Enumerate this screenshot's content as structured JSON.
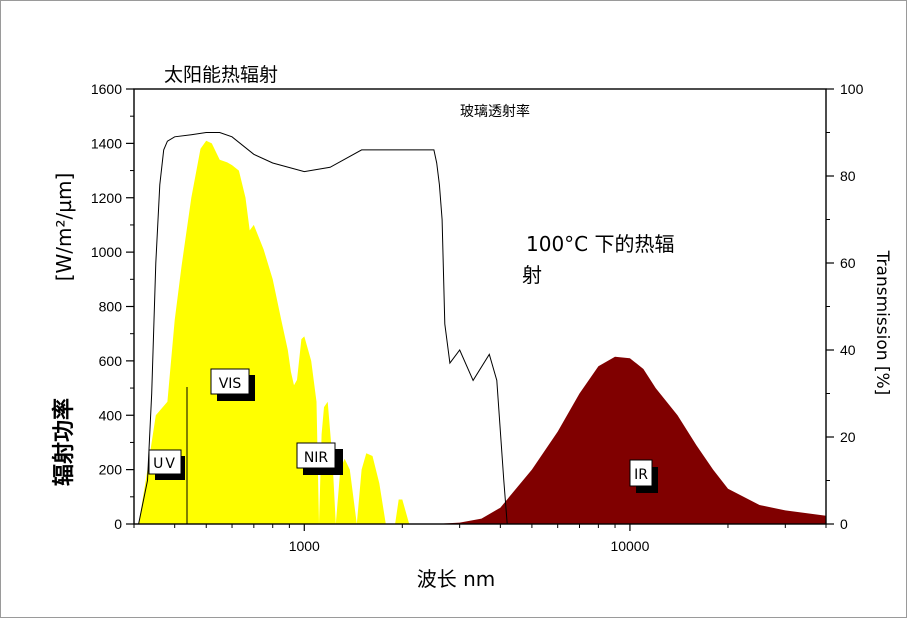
{
  "chart_data": {
    "type": "area",
    "title": "太阳能热辐射",
    "xlabel": "波长 nm",
    "x_scale": "log",
    "xlim": [
      300,
      40000
    ],
    "x_ticks": [
      "1000",
      "10000"
    ],
    "ylabel_left_unit": "[W/m²/µm]",
    "ylabel_left_cn": "辐射功率",
    "ylim_left": [
      0,
      1600
    ],
    "y_ticks_left": [
      "0",
      "200",
      "400",
      "600",
      "800",
      "1000",
      "1200",
      "1400",
      "1600"
    ],
    "ylabel_right": "Transmission [%]",
    "ylim_right": [
      0,
      100
    ],
    "y_ticks_right": [
      "0",
      "20",
      "40",
      "60",
      "80",
      "100"
    ],
    "annotations": {
      "glass": "玻璃透射率",
      "thermal": "100°C 下的热辐",
      "thermal2": "射",
      "uv": "UV",
      "vis": "VIS",
      "nir": "NIR",
      "ir": "IR"
    },
    "series": [
      {
        "axis": "left",
        "color": "#ffff00",
        "x": [
          310,
          330,
          350,
          380,
          400,
          420,
          450,
          480,
          500,
          520,
          550,
          580,
          600,
          630,
          660,
          680,
          700,
          750,
          800,
          850,
          890,
          910,
          930,
          950,
          980,
          1000,
          1050,
          1090,
          1110,
          1130,
          1150,
          1180,
          1220,
          1250,
          1290,
          1330,
          1380,
          1450,
          1500,
          1550,
          1620,
          1700,
          1780,
          1800,
          1900,
          1950,
          2000,
          2100
        ],
        "y": [
          0,
          200,
          400,
          450,
          750,
          950,
          1200,
          1380,
          1410,
          1400,
          1340,
          1330,
          1320,
          1300,
          1200,
          1080,
          1100,
          1010,
          900,
          750,
          640,
          560,
          510,
          530,
          680,
          690,
          600,
          450,
          0,
          330,
          430,
          450,
          240,
          0,
          200,
          240,
          200,
          0,
          200,
          260,
          250,
          150,
          0,
          0,
          0,
          90,
          90,
          0
        ]
      },
      {
        "axis": "left",
        "color": "#800000",
        "x": [
          2500,
          3000,
          3500,
          4000,
          5000,
          6000,
          7000,
          8000,
          9000,
          10000,
          11000,
          12000,
          14000,
          16000,
          18000,
          20000,
          25000,
          30000,
          40000
        ],
        "y": [
          0,
          5,
          20,
          60,
          200,
          340,
          480,
          580,
          615,
          610,
          570,
          500,
          400,
          290,
          200,
          130,
          70,
          50,
          30
        ]
      },
      {
        "axis": "right",
        "color": "#000000",
        "x": [
          310,
          330,
          340,
          350,
          360,
          370,
          380,
          400,
          450,
          500,
          550,
          600,
          700,
          800,
          1000,
          1200,
          1500,
          2000,
          2500,
          2550,
          2600,
          2650,
          2700,
          2800,
          3000,
          3300,
          3700,
          3900,
          4100,
          4200
        ],
        "y": [
          0,
          10,
          30,
          60,
          78,
          86,
          88,
          89,
          89.5,
          90,
          90,
          89,
          85,
          83,
          81,
          82,
          86,
          86,
          86,
          83,
          78,
          70,
          46,
          37,
          40,
          33,
          39,
          33,
          10,
          0
        ]
      }
    ]
  }
}
